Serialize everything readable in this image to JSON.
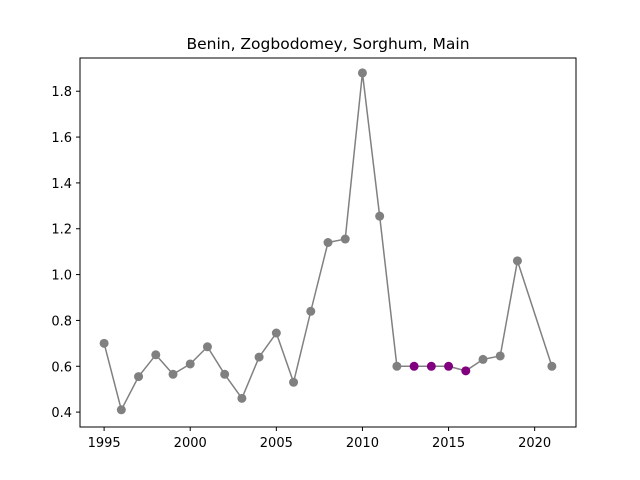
{
  "chart_data": {
    "type": "line",
    "title": "Benin, Zogbodomey, Sorghum, Main",
    "xlabel": "",
    "ylabel": "",
    "xlim": [
      1993.6,
      2022.4
    ],
    "ylim": [
      0.335,
      1.945
    ],
    "grid": false,
    "x_ticks": [
      1995,
      2000,
      2005,
      2010,
      2015,
      2020
    ],
    "y_ticks": [
      0.4,
      0.6,
      0.8,
      1.0,
      1.2,
      1.4,
      1.6,
      1.8
    ],
    "y_tick_labels": [
      "0.4",
      "0.6",
      "0.8",
      "1.0",
      "1.2",
      "1.4",
      "1.6",
      "1.8"
    ],
    "line_color": "#808080",
    "series": [
      {
        "x": [
          1995,
          1996,
          1997,
          1998,
          1999,
          2000,
          2001,
          2002,
          2003,
          2004,
          2005,
          2006,
          2007,
          2008,
          2009,
          2010,
          2011,
          2012,
          2013,
          2014,
          2015,
          2016,
          2017,
          2018,
          2019,
          2021
        ],
        "values": [
          0.7,
          0.41,
          0.555,
          0.65,
          0.565,
          0.61,
          0.685,
          0.565,
          0.46,
          0.64,
          0.745,
          0.53,
          0.84,
          1.14,
          1.155,
          1.88,
          1.255,
          0.6,
          0.6,
          0.6,
          0.6,
          0.58,
          0.63,
          0.645,
          1.06,
          0.6
        ],
        "point_colors": [
          "#808080",
          "#808080",
          "#808080",
          "#808080",
          "#808080",
          "#808080",
          "#808080",
          "#808080",
          "#808080",
          "#808080",
          "#808080",
          "#808080",
          "#808080",
          "#808080",
          "#808080",
          "#808080",
          "#808080",
          "#808080",
          "#800080",
          "#800080",
          "#800080",
          "#800080",
          "#808080",
          "#808080",
          "#808080",
          "#808080"
        ]
      }
    ]
  }
}
